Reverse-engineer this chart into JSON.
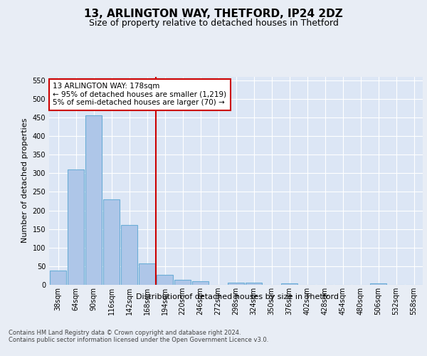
{
  "title1": "13, ARLINGTON WAY, THETFORD, IP24 2DZ",
  "title2": "Size of property relative to detached houses in Thetford",
  "xlabel": "Distribution of detached houses by size in Thetford",
  "ylabel": "Number of detached properties",
  "footer": "Contains HM Land Registry data © Crown copyright and database right 2024.\nContains public sector information licensed under the Open Government Licence v3.0.",
  "categories": [
    "38sqm",
    "64sqm",
    "90sqm",
    "116sqm",
    "142sqm",
    "168sqm",
    "194sqm",
    "220sqm",
    "246sqm",
    "272sqm",
    "298sqm",
    "324sqm",
    "350sqm",
    "376sqm",
    "402sqm",
    "428sqm",
    "454sqm",
    "480sqm",
    "506sqm",
    "532sqm",
    "558sqm"
  ],
  "values": [
    39,
    311,
    456,
    230,
    160,
    58,
    27,
    13,
    9,
    0,
    5,
    5,
    0,
    4,
    0,
    0,
    0,
    0,
    4,
    0,
    0
  ],
  "bar_color": "#aec6e8",
  "bar_edge_color": "#6baed6",
  "vline_color": "#cc0000",
  "vline_x": 5.5,
  "annotation_text": "13 ARLINGTON WAY: 178sqm\n← 95% of detached houses are smaller (1,219)\n5% of semi-detached houses are larger (70) →",
  "annotation_box_facecolor": "#ffffff",
  "annotation_box_edgecolor": "#cc0000",
  "ylim": [
    0,
    560
  ],
  "yticks": [
    0,
    50,
    100,
    150,
    200,
    250,
    300,
    350,
    400,
    450,
    500,
    550
  ],
  "bg_color": "#e8edf5",
  "plot_bg": "#dce6f5",
  "title1_fontsize": 11,
  "title2_fontsize": 9,
  "ylabel_fontsize": 8,
  "xlabel_fontsize": 8,
  "tick_fontsize": 7,
  "annotation_fontsize": 7.5,
  "footer_fontsize": 6
}
